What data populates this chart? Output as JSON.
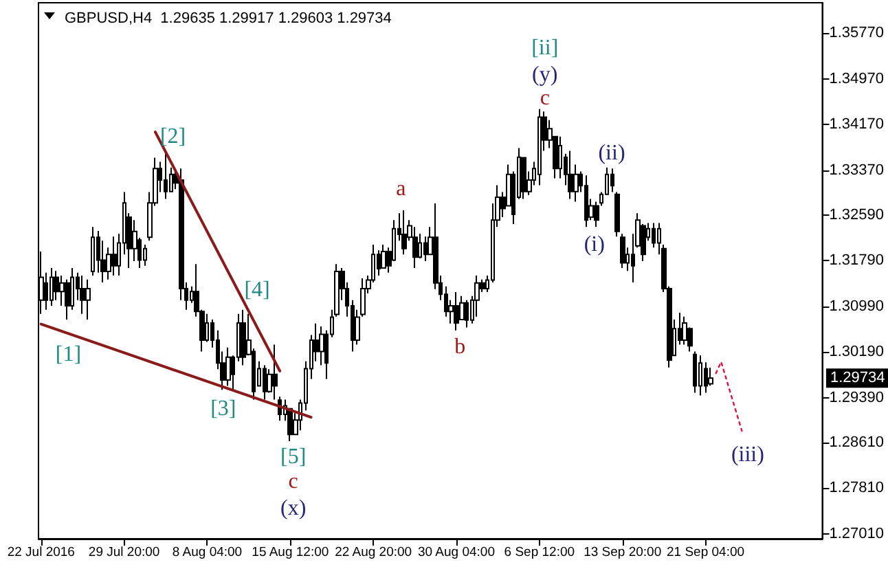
{
  "chart_data": {
    "type": "candlestick",
    "title": "GBPUSD,H4  1.29635 1.29917 1.29603 1.29734",
    "marker": "none",
    "categories": [
      "22 Jul 2016",
      null,
      null,
      null,
      null,
      null,
      null,
      null,
      null,
      null,
      null,
      null,
      null,
      null,
      null,
      null,
      "29 Jul 20:00",
      null,
      null,
      null,
      null,
      null,
      null,
      null,
      null,
      null,
      null,
      null,
      null,
      null,
      null,
      null,
      "8 Aug 04:00",
      null,
      null,
      null,
      null,
      null,
      null,
      null,
      null,
      null,
      null,
      null,
      null,
      null,
      null,
      null,
      "15 Aug 12:00",
      null,
      null,
      null,
      null,
      null,
      null,
      null,
      null,
      null,
      null,
      null,
      null,
      null,
      null,
      null,
      "22 Aug 20:00",
      null,
      null,
      null,
      null,
      null,
      null,
      null,
      null,
      null,
      null,
      null,
      null,
      null,
      null,
      null,
      "30 Aug 04:00",
      null,
      null,
      null,
      null,
      null,
      null,
      null,
      null,
      null,
      null,
      null,
      null,
      null,
      null,
      null,
      "6 Sep 12:00",
      null,
      null,
      null,
      null,
      null,
      null,
      null,
      null,
      null,
      null,
      null,
      null,
      null,
      null,
      null,
      "13 Sep 20:00",
      null,
      null,
      null,
      null,
      null,
      null,
      null,
      null,
      null,
      null,
      null,
      null,
      null,
      null,
      null,
      "21 Sep 04:00",
      null,
      null,
      null,
      null,
      null,
      null,
      null,
      null,
      null,
      null,
      null,
      null,
      null,
      null,
      null,
      null,
      null,
      null,
      null,
      null,
      null,
      null
    ],
    "ohlc": [
      [
        1.311,
        1.3195,
        1.3086,
        1.315
      ],
      [
        1.314,
        1.3158,
        1.3093,
        1.311
      ],
      [
        1.311,
        1.3166,
        1.31,
        1.315
      ],
      [
        1.315,
        1.3161,
        1.311,
        1.3125
      ],
      [
        1.3125,
        1.3153,
        1.31,
        1.314
      ],
      [
        1.314,
        1.3146,
        1.3076,
        1.31
      ],
      [
        1.31,
        1.3166,
        1.3093,
        1.315
      ],
      [
        1.315,
        1.3158,
        1.311,
        1.313
      ],
      [
        1.313,
        1.3153,
        1.3086,
        1.311
      ],
      [
        1.311,
        1.3146,
        1.3076,
        1.313
      ],
      [
        1.316,
        1.3238,
        1.3153,
        1.322
      ],
      [
        1.322,
        1.3231,
        1.3158,
        1.318
      ],
      [
        1.318,
        1.3214,
        1.3141,
        1.316
      ],
      [
        1.316,
        1.3202,
        1.3146,
        1.319
      ],
      [
        1.319,
        1.3221,
        1.3153,
        1.317
      ],
      [
        1.317,
        1.3226,
        1.3153,
        1.321
      ],
      [
        1.321,
        1.3299,
        1.319,
        1.328
      ],
      [
        1.3255,
        1.3262,
        1.3166,
        1.32
      ],
      [
        1.32,
        1.325,
        1.3178,
        1.323
      ],
      [
        1.3215,
        1.3219,
        1.3166,
        1.318
      ],
      [
        1.318,
        1.3207,
        1.317,
        1.32
      ],
      [
        1.322,
        1.3299,
        1.3214,
        1.328
      ],
      [
        1.328,
        1.3359,
        1.3275,
        1.334
      ],
      [
        1.334,
        1.3352,
        1.3299,
        1.332
      ],
      [
        1.332,
        1.3366,
        1.3287,
        1.33
      ],
      [
        1.33,
        1.3342,
        1.3299,
        1.333
      ],
      [
        1.333,
        1.3335,
        1.3304,
        1.3315
      ],
      [
        1.332,
        1.334,
        1.311,
        1.313
      ],
      [
        1.313,
        1.3141,
        1.3093,
        1.311
      ],
      [
        1.311,
        1.3134,
        1.3105,
        1.3125
      ],
      [
        1.3125,
        1.3173,
        1.3081,
        1.309
      ],
      [
        1.309,
        1.3093,
        1.302,
        1.304
      ],
      [
        1.304,
        1.3086,
        1.3037,
        1.307
      ],
      [
        1.307,
        1.3076,
        1.3027,
        1.304
      ],
      [
        1.304,
        1.3057,
        1.2989,
        1.3
      ],
      [
        1.3,
        1.302,
        1.2953,
        1.297
      ],
      [
        1.297,
        1.3027,
        1.296,
        1.301
      ],
      [
        1.301,
        1.3013,
        1.2953,
        1.298
      ],
      [
        1.301,
        1.3086,
        1.3003,
        1.307
      ],
      [
        1.307,
        1.3093,
        1.2996,
        1.301
      ],
      [
        1.3015,
        1.3086,
        1.3013,
        1.304
      ],
      [
        1.302,
        1.3025,
        1.2936,
        1.295
      ],
      [
        1.296,
        1.3003,
        1.296,
        1.299
      ],
      [
        1.299,
        1.2996,
        1.2936,
        1.295
      ],
      [
        1.295,
        1.2989,
        1.2948,
        1.298
      ],
      [
        1.298,
        1.3032,
        1.2936,
        1.296
      ],
      [
        1.2935,
        1.2941,
        1.2899,
        1.291
      ],
      [
        1.291,
        1.2936,
        1.2899,
        1.2925
      ],
      [
        1.292,
        1.2921,
        1.2863,
        1.2875
      ],
      [
        1.2875,
        1.2912,
        1.2875,
        1.29
      ],
      [
        1.29,
        1.2936,
        1.2882,
        1.293
      ],
      [
        1.293,
        1.3003,
        1.2917,
        1.299
      ],
      [
        1.299,
        1.3049,
        1.2972,
        1.304
      ],
      [
        1.304,
        1.3069,
        1.3003,
        1.302
      ],
      [
        1.302,
        1.3064,
        1.2996,
        1.305
      ],
      [
        1.305,
        1.3057,
        1.2972,
        1.3
      ],
      [
        1.305,
        1.3093,
        1.3045,
        1.308
      ],
      [
        1.3085,
        1.3173,
        1.3081,
        1.316
      ],
      [
        1.316,
        1.3166,
        1.311,
        1.313
      ],
      [
        1.313,
        1.3141,
        1.3081,
        1.31
      ],
      [
        1.31,
        1.311,
        1.302,
        1.304
      ],
      [
        1.304,
        1.3093,
        1.3032,
        1.308
      ],
      [
        1.3085,
        1.3148,
        1.3081,
        1.313
      ],
      [
        1.313,
        1.3153,
        1.3122,
        1.3145
      ],
      [
        1.3145,
        1.3207,
        1.3141,
        1.319
      ],
      [
        1.319,
        1.3197,
        1.3153,
        1.3165
      ],
      [
        1.3166,
        1.3207,
        1.3166,
        1.3195
      ],
      [
        1.3195,
        1.3202,
        1.3158,
        1.317
      ],
      [
        1.318,
        1.325,
        1.3178,
        1.3235
      ],
      [
        1.3235,
        1.3262,
        1.3214,
        1.3225
      ],
      [
        1.3225,
        1.3267,
        1.319,
        1.32
      ],
      [
        1.322,
        1.325,
        1.3214,
        1.324
      ],
      [
        1.322,
        1.3238,
        1.3166,
        1.3185
      ],
      [
        1.3185,
        1.3226,
        1.3183,
        1.321
      ],
      [
        1.321,
        1.3221,
        1.3178,
        1.319
      ],
      [
        1.319,
        1.3238,
        1.319,
        1.322
      ],
      [
        1.322,
        1.3279,
        1.3129,
        1.314
      ],
      [
        1.314,
        1.3153,
        1.311,
        1.312
      ],
      [
        1.312,
        1.3134,
        1.3081,
        1.309
      ],
      [
        1.309,
        1.311,
        1.3069,
        1.31
      ],
      [
        1.31,
        1.3124,
        1.3057,
        1.307
      ],
      [
        1.3076,
        1.3117,
        1.3076,
        1.3105
      ],
      [
        1.3105,
        1.311,
        1.3062,
        1.3075
      ],
      [
        1.3075,
        1.3117,
        1.3069,
        1.311
      ],
      [
        1.311,
        1.3153,
        1.3081,
        1.314
      ],
      [
        1.314,
        1.3146,
        1.3124,
        1.313
      ],
      [
        1.313,
        1.3153,
        1.3124,
        1.3145
      ],
      [
        1.3145,
        1.3279,
        1.3141,
        1.325
      ],
      [
        1.325,
        1.3311,
        1.3238,
        1.329
      ],
      [
        1.329,
        1.3299,
        1.3255,
        1.327
      ],
      [
        1.3275,
        1.3347,
        1.3275,
        1.333
      ],
      [
        1.333,
        1.3335,
        1.3243,
        1.326
      ],
      [
        1.329,
        1.3376,
        1.3287,
        1.336
      ],
      [
        1.3359,
        1.3359,
        1.3287,
        1.33
      ],
      [
        1.33,
        1.3335,
        1.3294,
        1.332
      ],
      [
        1.332,
        1.3352,
        1.3311,
        1.334
      ],
      [
        1.333,
        1.3444,
        1.3311,
        1.343
      ],
      [
        1.343,
        1.344,
        1.3371,
        1.339
      ],
      [
        1.339,
        1.3425,
        1.3376,
        1.341
      ],
      [
        1.3396,
        1.3396,
        1.3323,
        1.334
      ],
      [
        1.334,
        1.3396,
        1.3323,
        1.338
      ],
      [
        1.336,
        1.3366,
        1.3311,
        1.333
      ],
      [
        1.333,
        1.3371,
        1.3287,
        1.33
      ],
      [
        1.33,
        1.3347,
        1.3282,
        1.333
      ],
      [
        1.333,
        1.3335,
        1.3299,
        1.331
      ],
      [
        1.331,
        1.3328,
        1.3238,
        1.325
      ],
      [
        1.3255,
        1.3287,
        1.325,
        1.3275
      ],
      [
        1.3275,
        1.3282,
        1.3238,
        1.325
      ],
      [
        1.328,
        1.3299,
        1.3275,
        1.3295
      ],
      [
        1.3295,
        1.3342,
        1.3294,
        1.333
      ],
      [
        1.333,
        1.334,
        1.3299,
        1.331
      ],
      [
        1.3295,
        1.3299,
        1.3221,
        1.323
      ],
      [
        1.322,
        1.3226,
        1.3166,
        1.3175
      ],
      [
        1.3175,
        1.3202,
        1.3161,
        1.319
      ],
      [
        1.319,
        1.3226,
        1.3141,
        1.317
      ],
      [
        1.3205,
        1.3262,
        1.3202,
        1.325
      ],
      [
        1.324,
        1.3243,
        1.3178,
        1.319
      ],
      [
        1.322,
        1.3245,
        1.3214,
        1.3235
      ],
      [
        1.3235,
        1.3245,
        1.3202,
        1.321
      ],
      [
        1.321,
        1.3245,
        1.319,
        1.3235
      ],
      [
        1.32,
        1.3207,
        1.3124,
        1.313
      ],
      [
        1.313,
        1.3134,
        1.2992,
        1.3005
      ],
      [
        1.3013,
        1.3076,
        1.3013,
        1.306
      ],
      [
        1.306,
        1.3088,
        1.3032,
        1.304
      ],
      [
        1.304,
        1.3081,
        1.3032,
        1.307
      ],
      [
        1.306,
        1.3062,
        1.302,
        1.303
      ],
      [
        1.3015,
        1.302,
        1.2948,
        1.296
      ],
      [
        1.296,
        1.3013,
        1.2943,
        1.3
      ],
      [
        1.299,
        1.3001,
        1.2948,
        1.296
      ],
      [
        1.29635,
        1.29917,
        1.29603,
        1.29734
      ],
      null,
      null,
      null,
      null,
      null,
      null,
      null,
      null,
      null,
      null,
      null,
      null,
      null,
      null,
      null,
      null,
      null,
      null,
      null,
      null,
      null
    ],
    "series": [
      {
        "type": "line",
        "color": "#8b1a1a",
        "line_style": "solid",
        "values": [
          null,
          null,
          null,
          null,
          null,
          null,
          null,
          null,
          null,
          null,
          null,
          null,
          null,
          null,
          null,
          null,
          null,
          null,
          null,
          null,
          null,
          null,
          1.3404,
          null,
          null,
          null,
          null,
          null,
          null,
          null,
          null,
          null,
          null,
          null,
          null,
          null,
          null,
          null,
          null,
          null,
          null,
          null,
          null,
          null,
          null,
          null,
          1.2986,
          null,
          null,
          null,
          null,
          null,
          null,
          null,
          null,
          null,
          null,
          null,
          null,
          null,
          null,
          null,
          null,
          null,
          null,
          null,
          null,
          null,
          null,
          null,
          null,
          null,
          null,
          null,
          null,
          null,
          null,
          null,
          null,
          null,
          null,
          null,
          null,
          null,
          null,
          null,
          null,
          null,
          null,
          null,
          null,
          null,
          null,
          null,
          null,
          null,
          null,
          null,
          null,
          null,
          null,
          null,
          null,
          null,
          null,
          null,
          null,
          null,
          null,
          null,
          null,
          null,
          null,
          null,
          null,
          null,
          null,
          null,
          null,
          null,
          null,
          null,
          null,
          null,
          null,
          null,
          null,
          null,
          null,
          null,
          null,
          null,
          null,
          null,
          null,
          null,
          null,
          null,
          null,
          null,
          null,
          null,
          null,
          null,
          null,
          null,
          null,
          null,
          null,
          null,
          null
        ]
      },
      {
        "type": "line",
        "color": "#8b1a1a",
        "line_style": "solid",
        "values": [
          1.3068,
          null,
          null,
          null,
          null,
          null,
          null,
          null,
          null,
          null,
          null,
          null,
          null,
          null,
          null,
          null,
          null,
          null,
          null,
          null,
          null,
          null,
          null,
          null,
          null,
          null,
          null,
          null,
          null,
          null,
          null,
          null,
          null,
          null,
          null,
          null,
          null,
          null,
          null,
          null,
          null,
          null,
          null,
          null,
          null,
          null,
          null,
          null,
          null,
          null,
          null,
          null,
          1.2905,
          null,
          null,
          null,
          null,
          null,
          null,
          null,
          null,
          null,
          null,
          null,
          null,
          null,
          null,
          null,
          null,
          null,
          null,
          null,
          null,
          null,
          null,
          null,
          null,
          null,
          null,
          null,
          null,
          null,
          null,
          null,
          null,
          null,
          null,
          null,
          null,
          null,
          null,
          null,
          null,
          null,
          null,
          null,
          null,
          null,
          null,
          null,
          null,
          null,
          null,
          null,
          null,
          null,
          null,
          null,
          null,
          null,
          null,
          null,
          null,
          null,
          null,
          null,
          null,
          null,
          null,
          null,
          null,
          null,
          null,
          null,
          null,
          null,
          null,
          null,
          null,
          null,
          null,
          null,
          null,
          null,
          null,
          null,
          null,
          null,
          null,
          null,
          null,
          null,
          null,
          null,
          null,
          null,
          null,
          null,
          null,
          null,
          null
        ]
      },
      {
        "type": "line",
        "color": "#dc143c",
        "line_style": "dotted",
        "values": [
          null,
          null,
          null,
          null,
          null,
          null,
          null,
          null,
          null,
          null,
          null,
          null,
          null,
          null,
          null,
          null,
          null,
          null,
          null,
          null,
          null,
          null,
          null,
          null,
          null,
          null,
          null,
          null,
          null,
          null,
          null,
          null,
          null,
          null,
          null,
          null,
          null,
          null,
          null,
          null,
          null,
          null,
          null,
          null,
          null,
          null,
          null,
          null,
          null,
          null,
          null,
          null,
          null,
          null,
          null,
          null,
          null,
          null,
          null,
          null,
          null,
          null,
          null,
          null,
          null,
          null,
          null,
          null,
          null,
          null,
          null,
          null,
          null,
          null,
          null,
          null,
          null,
          null,
          null,
          null,
          null,
          null,
          null,
          null,
          null,
          null,
          null,
          null,
          null,
          null,
          null,
          null,
          null,
          null,
          null,
          null,
          null,
          null,
          null,
          null,
          null,
          null,
          null,
          null,
          null,
          null,
          null,
          null,
          null,
          null,
          null,
          null,
          null,
          null,
          null,
          null,
          null,
          null,
          null,
          null,
          null,
          null,
          null,
          null,
          null,
          null,
          null,
          null,
          null,
          null,
          1.2982,
          1.3002,
          null,
          null,
          null,
          1.2881,
          null,
          null,
          null,
          null,
          null,
          null,
          null,
          null,
          null,
          null,
          null,
          null,
          null,
          null,
          null
        ]
      }
    ],
    "ylim": [
      1.26924,
      1.36302
    ],
    "yticks": [
      {
        "value": 1.2701,
        "label": "1.27010"
      },
      {
        "value": 1.2781,
        "label": "1.27810"
      },
      {
        "value": 1.2861,
        "label": "1.28610"
      },
      {
        "value": 1.2939,
        "label": "1.29390"
      },
      {
        "value": 1.3019,
        "label": "1.30190"
      },
      {
        "value": 1.3099,
        "label": "1.30990"
      },
      {
        "value": 1.3179,
        "label": "1.31790"
      },
      {
        "value": 1.3259,
        "label": "1.32590"
      },
      {
        "value": 1.3337,
        "label": "1.33370"
      },
      {
        "value": 1.3417,
        "label": "1.34170"
      },
      {
        "value": 1.3497,
        "label": "1.34970"
      },
      {
        "value": 1.3577,
        "label": "1.35770"
      }
    ],
    "annotations": [
      "[1]",
      "[2]",
      "[3]",
      "[4]",
      "[5]",
      "c",
      "(x)",
      "a",
      "b",
      "[ii]",
      "(y)",
      "c",
      "(i)",
      "(ii)",
      "(iii)",
      "1.29734"
    ]
  }
}
